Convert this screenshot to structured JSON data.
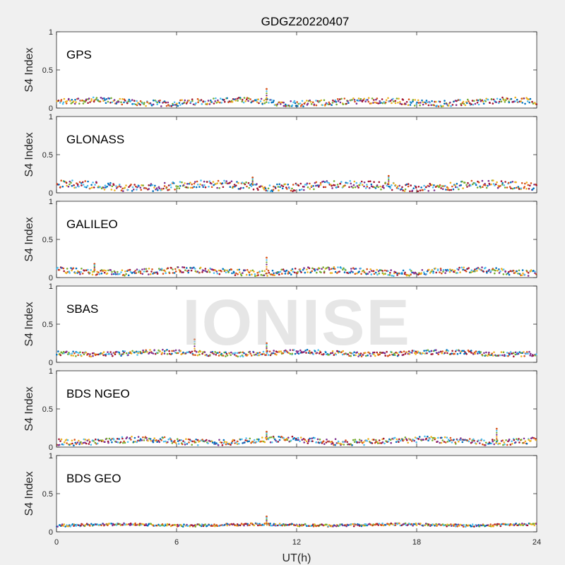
{
  "chart_data": {
    "type": "scatter",
    "title": "GDGZ20220407",
    "xlabel": "UT(h)",
    "ylabel": "S4 Index",
    "xlim": [
      0,
      24
    ],
    "ylim": [
      0,
      1
    ],
    "x_ticks": [
      "0",
      "6",
      "12",
      "18",
      "24"
    ],
    "y_ticks": [
      "0",
      "0.5",
      "1"
    ],
    "grid": false,
    "series_colors": [
      "#0072BD",
      "#D95319",
      "#EDB120",
      "#7E2F8E",
      "#77AC30",
      "#4DBEEE",
      "#A2142F"
    ],
    "panels": [
      {
        "label": "GPS",
        "baseline": 0.08,
        "spread": 0.04,
        "spikes": [
          {
            "x": 10.5,
            "y": 0.25
          }
        ]
      },
      {
        "label": "GLONASS",
        "baseline": 0.09,
        "spread": 0.05,
        "spikes": [
          {
            "x": 9.8,
            "y": 0.2
          },
          {
            "x": 16.6,
            "y": 0.22
          }
        ]
      },
      {
        "label": "GALILEO",
        "baseline": 0.08,
        "spread": 0.04,
        "spikes": [
          {
            "x": 10.5,
            "y": 0.26
          },
          {
            "x": 1.9,
            "y": 0.18
          }
        ]
      },
      {
        "label": "SBAS",
        "baseline": 0.12,
        "spread": 0.03,
        "spikes": [
          {
            "x": 6.9,
            "y": 0.3
          },
          {
            "x": 10.5,
            "y": 0.25
          }
        ]
      },
      {
        "label": "BDS NGEO",
        "baseline": 0.08,
        "spread": 0.04,
        "spikes": [
          {
            "x": 10.5,
            "y": 0.2
          },
          {
            "x": 22.0,
            "y": 0.24
          }
        ]
      },
      {
        "label": "BDS GEO",
        "baseline": 0.09,
        "spread": 0.015,
        "spikes": [
          {
            "x": 10.5,
            "y": 0.2
          }
        ]
      }
    ]
  },
  "watermark": "IONISE"
}
